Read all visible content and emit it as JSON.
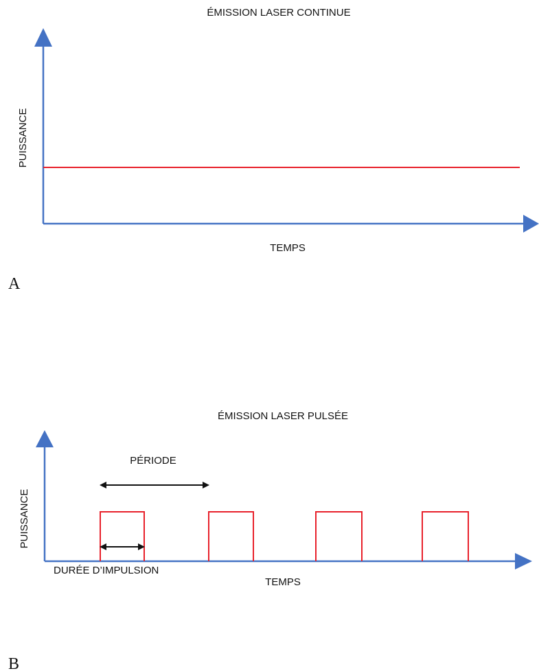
{
  "panel_a": {
    "title": "ÉMISSION LASER CONTINUE",
    "y_axis_label": "PUISSANCE",
    "x_axis_label": "TEMPS",
    "panel_letter": "A",
    "signal": "continuous"
  },
  "panel_b": {
    "title": "ÉMISSION LASER PULSÉE",
    "y_axis_label": "PUISSANCE",
    "x_axis_label": "TEMPS",
    "panel_letter": "B",
    "period_label": "PÉRIODE",
    "pulse_duration_label": "DURÉE D’IMPULSION",
    "pulse_count": 4
  },
  "colors": {
    "axis": "#4472c4",
    "signal": "#e8202a",
    "annotation": "#111111"
  }
}
